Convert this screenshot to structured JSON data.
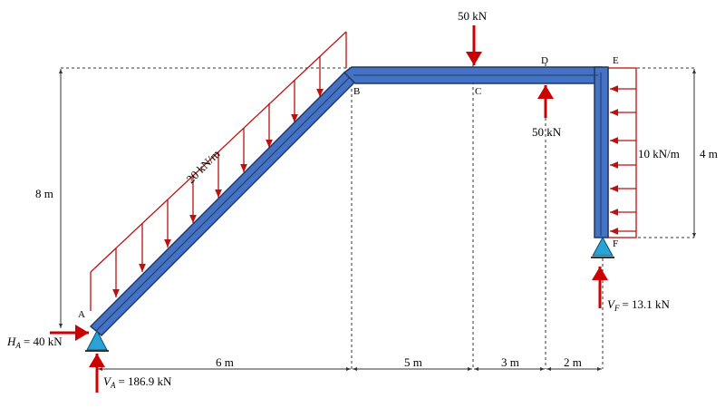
{
  "nodes": [
    "A",
    "B",
    "C",
    "D",
    "E",
    "F"
  ],
  "point_loads": [
    "50 kN",
    "50 kN"
  ],
  "distributed_loads": [
    "20 kN/m",
    "10 kN/m"
  ],
  "dimensions": [
    "8 m",
    "4 m",
    "6 m",
    "5 m",
    "3 m",
    "2 m"
  ],
  "reactions": [
    {
      "symbol": "H",
      "subscript": "A",
      "text": "= 40 kN"
    },
    {
      "symbol": "V",
      "subscript": "A",
      "text": "= 186.9 kN"
    },
    {
      "symbol": "V",
      "subscript": "F",
      "text": "= 13.1 kN"
    }
  ]
}
